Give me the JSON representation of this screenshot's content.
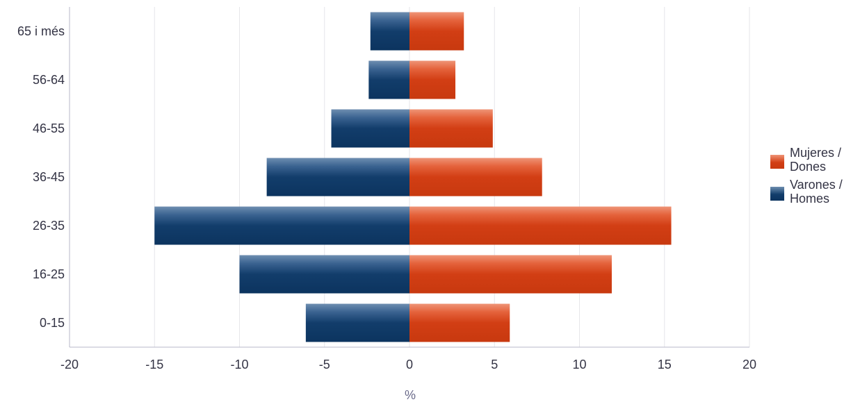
{
  "chart_data": {
    "type": "bar",
    "orientation": "horizontal",
    "title": "",
    "xlabel": "%",
    "ylabel": "",
    "categories": [
      "65 i més",
      "56-64",
      "46-55",
      "36-45",
      "26-35",
      "16-25",
      "0-15"
    ],
    "series": [
      {
        "name": "Mujeres / Dones",
        "color": "#d5431b",
        "values": [
          3.2,
          2.7,
          4.9,
          7.8,
          15.4,
          11.9,
          5.9
        ]
      },
      {
        "name": "Varones / Homes",
        "color": "#13406e",
        "values": [
          -2.3,
          -2.4,
          -4.6,
          -8.4,
          -15.0,
          -10.0,
          -6.1
        ]
      }
    ],
    "xlim": [
      -20,
      20
    ],
    "xticks": [
      "-20",
      "-15",
      "-10",
      "-5",
      "0",
      "5",
      "10",
      "15",
      "20"
    ],
    "grid": true,
    "legend_position": "right"
  },
  "legend": {
    "items": [
      {
        "label": "Mujeres /\nDones",
        "color": "#d5431b"
      },
      {
        "label": "Varones /\nHomes",
        "color": "#13406e"
      }
    ]
  }
}
